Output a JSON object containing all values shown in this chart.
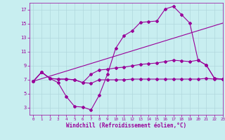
{
  "xlabel": "Windchill (Refroidissement éolien,°C)",
  "bg_color": "#c8eef0",
  "line_color": "#990099",
  "grid_color": "#b0d8dc",
  "line1_x": [
    0,
    1,
    2,
    3,
    4,
    5,
    6,
    7,
    8,
    9,
    10,
    11,
    12,
    13,
    14,
    15,
    16,
    17,
    18,
    19,
    20,
    21,
    22,
    23
  ],
  "line1_y": [
    6.8,
    8.1,
    7.2,
    7.1,
    7.1,
    7.0,
    6.6,
    6.5,
    7.0,
    7.0,
    7.0,
    7.0,
    7.1,
    7.1,
    7.1,
    7.1,
    7.1,
    7.1,
    7.1,
    7.1,
    7.1,
    7.2,
    7.1,
    7.1
  ],
  "line2_x": [
    0,
    1,
    2,
    3,
    4,
    5,
    6,
    7,
    8,
    9,
    10,
    11,
    12,
    13,
    14,
    15,
    16,
    17,
    18,
    19,
    20,
    21,
    22,
    23
  ],
  "line2_y": [
    6.8,
    8.1,
    7.2,
    6.6,
    4.6,
    3.2,
    3.1,
    2.7,
    4.8,
    7.8,
    11.5,
    13.3,
    14.0,
    15.2,
    15.3,
    15.4,
    17.1,
    17.5,
    16.3,
    15.1,
    9.8,
    9.1,
    7.2,
    7.1
  ],
  "line3_x": [
    0,
    1,
    2,
    3,
    4,
    5,
    6,
    7,
    8,
    9,
    10,
    11,
    12,
    13,
    14,
    15,
    16,
    17,
    18,
    19,
    20,
    21,
    22,
    23
  ],
  "line3_y": [
    6.8,
    8.1,
    7.2,
    7.1,
    7.1,
    7.0,
    6.6,
    7.8,
    8.4,
    8.5,
    8.7,
    8.8,
    9.0,
    9.2,
    9.3,
    9.4,
    9.6,
    9.8,
    9.7,
    9.6,
    9.8,
    9.1,
    7.2,
    7.1
  ],
  "line4_x": [
    0,
    23
  ],
  "line4_y": [
    6.8,
    15.1
  ],
  "ylim": [
    2,
    18
  ],
  "xlim": [
    -0.5,
    23
  ],
  "yticks": [
    3,
    5,
    7,
    9,
    11,
    13,
    15,
    17
  ],
  "xticks": [
    0,
    1,
    2,
    3,
    4,
    5,
    6,
    7,
    8,
    9,
    10,
    11,
    12,
    13,
    14,
    15,
    16,
    17,
    18,
    19,
    20,
    21,
    22,
    23
  ]
}
